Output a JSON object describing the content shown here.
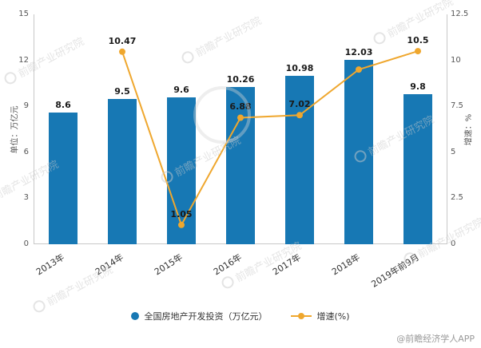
{
  "chart_data": {
    "type": "bar",
    "categories": [
      "2013年",
      "2014年",
      "2015年",
      "2016年",
      "2017年",
      "2018年",
      "2019年前9月"
    ],
    "series": [
      {
        "name": "全国房地产开发投资（万亿元）",
        "type": "bar",
        "axis": "left",
        "color": "#1778b4",
        "values": [
          8.6,
          9.5,
          9.6,
          10.26,
          10.98,
          12.03,
          9.8
        ],
        "labels_shown": [
          "8.6",
          "9.5",
          "9.6",
          "10.26",
          "10.98",
          "12.03",
          "9.8"
        ]
      },
      {
        "name": "增速(%)",
        "type": "line",
        "axis": "right",
        "color": "#efa72e",
        "values": [
          null,
          10.47,
          1.05,
          6.88,
          7.02,
          9.5,
          10.5
        ],
        "labels_shown": [
          null,
          "10.47",
          "1.05",
          "6.88",
          "7.02",
          null,
          "10.5"
        ]
      }
    ],
    "left_axis": {
      "title": "单位：万亿元",
      "ticks": [
        0,
        3,
        6,
        9,
        12,
        15
      ],
      "max": 15
    },
    "right_axis": {
      "title": "增速：%",
      "ticks": [
        0,
        2.5,
        5,
        7.5,
        10,
        12.5
      ],
      "max": 12.5
    },
    "grid": false,
    "legend_position": "bottom"
  },
  "watermark": {
    "text": "前瞻产业研究院",
    "source": "@前瞻经济学人APP"
  }
}
